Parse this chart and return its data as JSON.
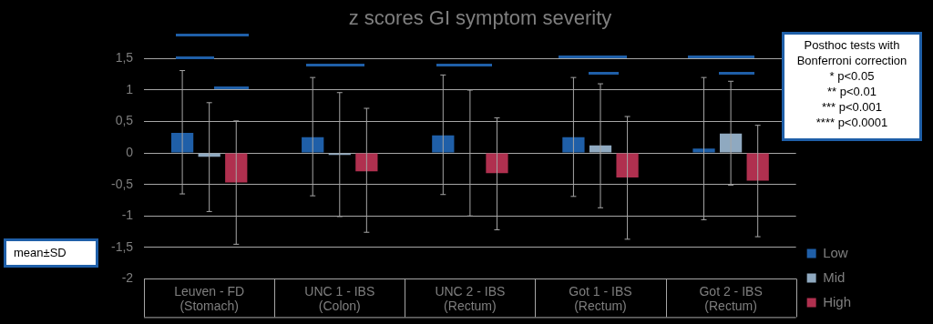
{
  "chart_data": {
    "type": "bar",
    "title": "z scores GI symptom severity",
    "categories": [
      "Leuven - FD (Stomach)",
      "UNC 1 - IBS (Colon)",
      "UNC 2 - IBS (Rectum)",
      "Got 1 - IBS (Rectum)",
      "Got 2 - IBS (Rectum)"
    ],
    "series": [
      {
        "name": "Low",
        "color": "#1f5fa8",
        "values": [
          0.32,
          0.25,
          0.28,
          0.25,
          0.07
        ],
        "errors": [
          [
            -0.65,
            1.31
          ],
          [
            -0.68,
            1.2
          ],
          [
            -0.66,
            1.24
          ],
          [
            -0.69,
            1.2
          ],
          [
            -1.06,
            1.2
          ]
        ]
      },
      {
        "name": "Mid",
        "color": "#8fa9c0",
        "values": [
          -0.06,
          -0.03,
          0,
          0.12,
          0.31
        ],
        "errors": [
          [
            -0.93,
            0.8
          ],
          [
            -1.01,
            0.96
          ],
          [
            -1,
            1
          ],
          [
            -0.87,
            1.1
          ],
          [
            -0.51,
            1.14
          ]
        ]
      },
      {
        "name": "High",
        "color": "#b0304f",
        "values": [
          -0.47,
          -0.29,
          -0.32,
          -0.39,
          -0.44
        ],
        "errors": [
          [
            -1.45,
            0.51
          ],
          [
            -1.26,
            0.71
          ],
          [
            -1.22,
            0.56
          ],
          [
            -1.37,
            0.58
          ],
          [
            -1.33,
            0.44
          ]
        ]
      }
    ],
    "ylim": [
      -2,
      1.5
    ],
    "yticks": [
      -2,
      {
        "value": -1.5,
        "label": "-1,5"
      },
      -1,
      {
        "value": -0.5,
        "label": "-0,5"
      },
      0,
      {
        "value": 0.5,
        "label": "0,5"
      },
      1,
      {
        "value": 1.5,
        "label": "1,5"
      }
    ],
    "grid": "y",
    "legend": "bottom right",
    "annotations": [
      "Posthoc tests with Bonferroni correction",
      "* p<0.05",
      "** p<0.01",
      "*** p<0.001",
      "**** p<0.0001",
      "mean±SD"
    ]
  }
}
